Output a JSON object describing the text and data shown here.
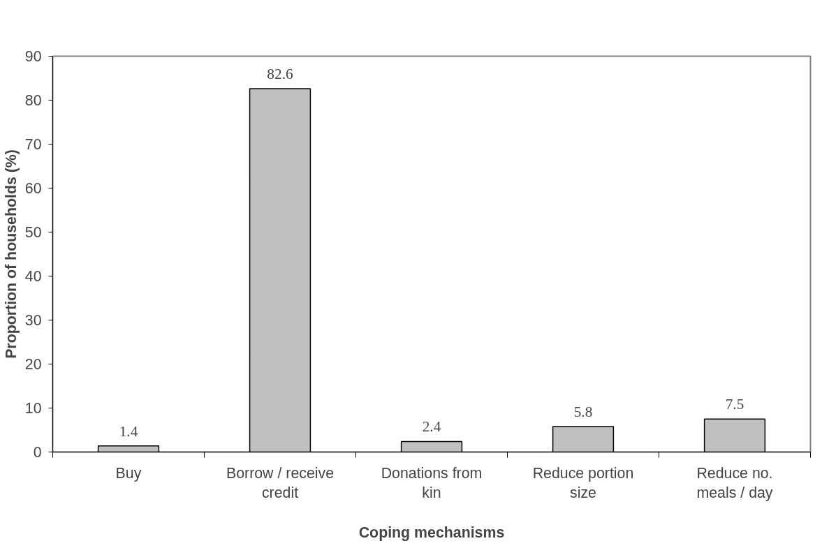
{
  "chart_data": {
    "type": "bar",
    "xlabel": "Coping mechanisms",
    "ylabel": "Proportion of households (%)",
    "categories": [
      "Buy",
      "Borrow / receive\ncredit",
      "Donations from\nkin",
      "Reduce portion\nsize",
      "Reduce no.\nmeals / day"
    ],
    "values": [
      1.4,
      82.6,
      2.4,
      5.8,
      7.5
    ],
    "color": "#c0c0c0",
    "ylim": [
      0,
      90
    ],
    "yticks": [
      0,
      10,
      20,
      30,
      40,
      50,
      60,
      70,
      80,
      90
    ],
    "grid": false,
    "data_labels": true
  }
}
